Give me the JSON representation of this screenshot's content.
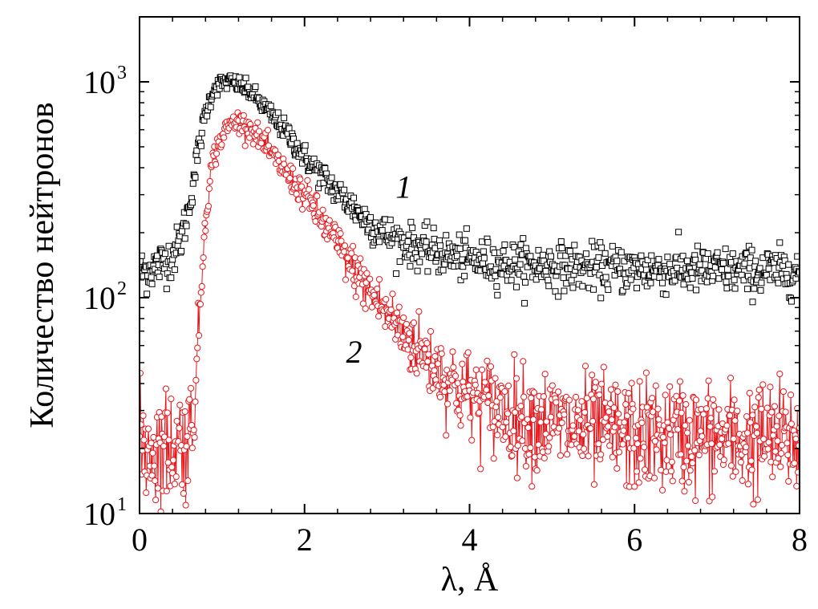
{
  "chart_data": {
    "type": "scatter",
    "title": "",
    "xlabel": "λ, Å",
    "ylabel": "Количество нейтронов",
    "xlim": [
      0,
      8
    ],
    "ylim": [
      10,
      2000
    ],
    "yscale": "log",
    "grid": false,
    "x_ticks": [
      0,
      2,
      4,
      6,
      8
    ],
    "x_tick_labels": [
      "0",
      "2",
      "4",
      "6",
      "8"
    ],
    "x_minor_step": 0.4,
    "y_ticks": [
      {
        "value": 10,
        "base": "10",
        "exp": "1"
      },
      {
        "value": 100,
        "base": "10",
        "exp": "2"
      },
      {
        "value": 1000,
        "base": "10",
        "exp": "3"
      }
    ],
    "annotations": [
      {
        "text": "1",
        "x": 3.2,
        "y": 290,
        "series": "1"
      },
      {
        "text": "2",
        "x": 2.6,
        "y": 50,
        "series": "2"
      }
    ],
    "series": [
      {
        "name": "1",
        "marker": "square",
        "color": "#000000",
        "line": false,
        "x": [
          0.0,
          0.2,
          0.4,
          0.5,
          0.6,
          0.7,
          0.8,
          0.9,
          1.0,
          1.1,
          1.2,
          1.3,
          1.4,
          1.5,
          1.6,
          1.8,
          2.0,
          2.2,
          2.4,
          2.6,
          2.8,
          3.0,
          3.2,
          3.5,
          4.0,
          4.5,
          5.0,
          5.5,
          6.0,
          6.5,
          7.0,
          7.5,
          8.0
        ],
        "y": [
          130,
          140,
          155,
          185,
          260,
          450,
          720,
          930,
          990,
          1000,
          970,
          920,
          860,
          770,
          700,
          570,
          450,
          370,
          310,
          260,
          220,
          195,
          180,
          165,
          150,
          143,
          140,
          137,
          135,
          134,
          133,
          133,
          132
        ]
      },
      {
        "name": "2",
        "marker": "circle",
        "color": "#e8161b",
        "line": true,
        "x": [
          0.0,
          0.2,
          0.4,
          0.6,
          0.65,
          0.7,
          0.75,
          0.8,
          0.85,
          0.9,
          1.0,
          1.1,
          1.2,
          1.3,
          1.4,
          1.5,
          1.6,
          1.8,
          2.0,
          2.2,
          2.4,
          2.6,
          2.8,
          3.0,
          3.2,
          3.5,
          3.8,
          4.0,
          4.5,
          5.0,
          5.5,
          6.0,
          6.5,
          7.0,
          7.5,
          8.0
        ],
        "y": [
          21,
          20,
          21,
          22,
          30,
          50,
          120,
          240,
          350,
          450,
          560,
          640,
          660,
          630,
          580,
          520,
          460,
          370,
          300,
          230,
          175,
          135,
          105,
          85,
          68,
          52,
          40,
          35,
          29,
          26,
          24,
          23,
          23,
          22,
          22,
          22
        ]
      }
    ]
  }
}
